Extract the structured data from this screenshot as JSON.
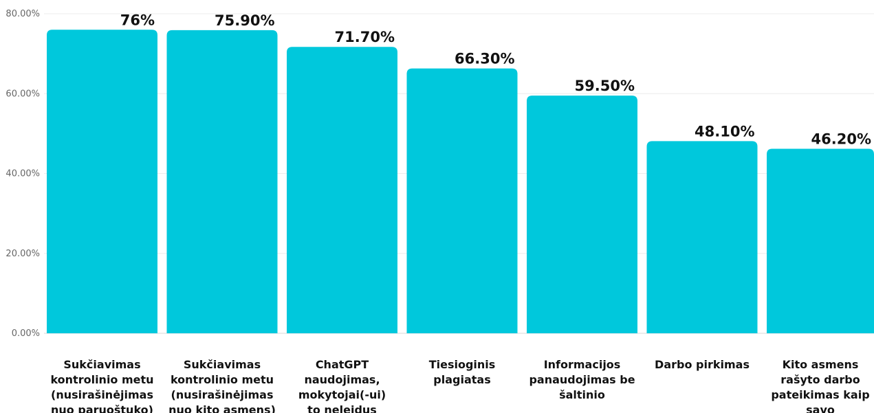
{
  "chart_data": {
    "type": "bar",
    "title": "",
    "xlabel": "",
    "ylabel": "",
    "ylim": [
      0,
      80
    ],
    "yticks": [
      0,
      20,
      40,
      60,
      80
    ],
    "ytick_labels": [
      "0.00%",
      "20.00%",
      "40.00%",
      "60.00%",
      "80.00%"
    ],
    "grid": true,
    "legend": "none",
    "bar_color": "#00C8DC",
    "categories": [
      [
        "Sukčiavimas",
        "kontrolinio metu",
        "(nusirašinėjimas",
        "nuo paruoštuko)"
      ],
      [
        "Sukčiavimas",
        "kontrolinio metu",
        "(nusirašinėjimas",
        "nuo kito asmens)"
      ],
      [
        "ChatGPT",
        "naudojimas,",
        "mokytojai(-ui)",
        "to neleidus"
      ],
      [
        "Tiesioginis",
        "plagiatas"
      ],
      [
        "Informacijos",
        "panaudojimas be",
        "šaltinio"
      ],
      [
        "Darbo pirkimas"
      ],
      [
        "Kito asmens",
        "rašyto darbo",
        "pateikimas kaip",
        "savo"
      ]
    ],
    "values": [
      76,
      75.9,
      71.7,
      66.3,
      59.5,
      48.1,
      46.2
    ],
    "data_labels": [
      "76%",
      "75.90%",
      "71.70%",
      "66.30%",
      "59.50%",
      "48.10%",
      "46.20%"
    ]
  }
}
